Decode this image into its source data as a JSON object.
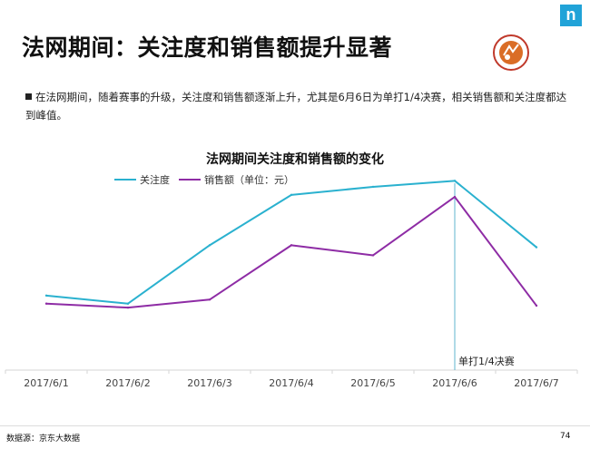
{
  "brand": {
    "logo_glyph": "n",
    "logo_color": "#21a3d8",
    "rg_logo_text": "ROLAND GARROS",
    "rg_logo_color": "#c0392b"
  },
  "title": "法网期间：关注度和销售额提升显著",
  "bullet": "在法网期间，随着赛事的升级，关注度和销售额逐渐上升，尤其是6月6日为单打1/4决赛，相关销售额和关注度都达到峰值。",
  "footer": {
    "source": "数据源：京东大数据",
    "page": "74"
  },
  "chart_data": {
    "type": "line",
    "title": "法网期间关注度和销售额的变化",
    "categories": [
      "2017/6/1",
      "2017/6/2",
      "2017/6/3",
      "2017/6/4",
      "2017/6/5",
      "2017/6/6",
      "2017/6/7"
    ],
    "series": [
      {
        "name": "关注度",
        "color": "#2ab1cf",
        "values": [
          37,
          33,
          62,
          87,
          91,
          94,
          61
        ]
      },
      {
        "name": "销售额（单位：元）",
        "color": "#8e2ca5",
        "values": [
          33,
          31,
          35,
          62,
          57,
          86,
          32
        ]
      }
    ],
    "ylim": [
      0,
      100
    ],
    "grid": false,
    "legend_position": "top-left",
    "annotation": {
      "category": "2017/6/6",
      "text": "单打1/4决赛"
    }
  }
}
